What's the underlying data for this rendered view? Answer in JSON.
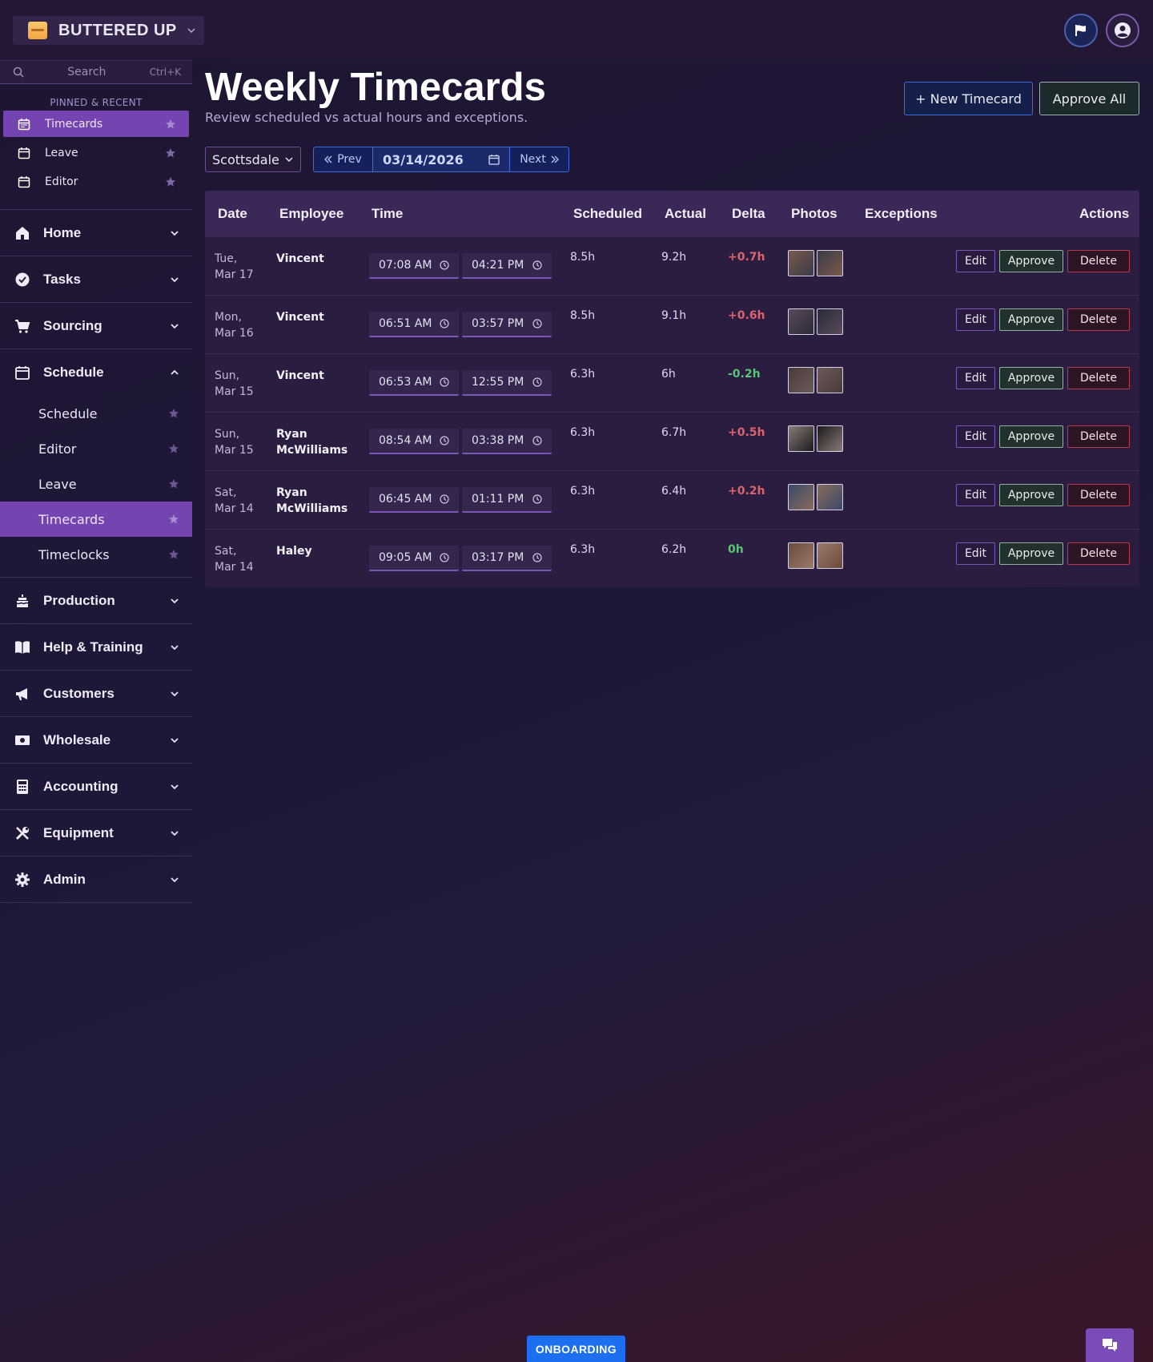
{
  "brand": {
    "name": "BUTTERED UP",
    "logo_icon": "brand-logo"
  },
  "top_actions": {
    "flag_icon": "flag-icon",
    "user_icon": "user-circle-icon"
  },
  "sidebar": {
    "search": {
      "placeholder": "Search",
      "shortcut": "Ctrl+K"
    },
    "pinned_title": "PINNED & RECENT",
    "pinned": [
      {
        "label": "Timecards",
        "active": true
      },
      {
        "label": "Leave",
        "active": false
      },
      {
        "label": "Editor",
        "active": false
      }
    ],
    "groups": [
      {
        "label": "Home",
        "icon": "house-icon",
        "expanded": false
      },
      {
        "label": "Tasks",
        "icon": "check-circle-icon",
        "expanded": false
      },
      {
        "label": "Sourcing",
        "icon": "cart-icon",
        "expanded": false
      },
      {
        "label": "Schedule",
        "icon": "calendar-icon",
        "expanded": true,
        "items": [
          {
            "label": "Schedule",
            "active": false
          },
          {
            "label": "Editor",
            "active": false
          },
          {
            "label": "Leave",
            "active": false
          },
          {
            "label": "Timecards",
            "active": true
          },
          {
            "label": "Timeclocks",
            "active": false
          }
        ]
      },
      {
        "label": "Production",
        "icon": "cake-icon",
        "expanded": false
      },
      {
        "label": "Help & Training",
        "icon": "book-icon",
        "expanded": false
      },
      {
        "label": "Customers",
        "icon": "megaphone-icon",
        "expanded": false
      },
      {
        "label": "Wholesale",
        "icon": "money-icon",
        "expanded": false
      },
      {
        "label": "Accounting",
        "icon": "calculator-icon",
        "expanded": false
      },
      {
        "label": "Equipment",
        "icon": "tools-icon",
        "expanded": false
      },
      {
        "label": "Admin",
        "icon": "gear-icon",
        "expanded": false
      }
    ]
  },
  "page": {
    "title": "Weekly Timecards",
    "subtitle": "Review scheduled vs actual hours and exceptions.",
    "new_button": "+ New Timecard",
    "approve_all_button": "Approve All"
  },
  "filters": {
    "location": "Scottsdale",
    "prev_label": "Prev",
    "next_label": "Next",
    "date": "03/14/2026"
  },
  "table": {
    "headers": {
      "date": "Date",
      "employee": "Employee",
      "time": "Time",
      "scheduled": "Scheduled",
      "actual": "Actual",
      "delta": "Delta",
      "photos": "Photos",
      "exceptions": "Exceptions",
      "actions": "Actions"
    },
    "action_labels": {
      "edit": "Edit",
      "approve": "Approve",
      "delete": "Delete"
    },
    "rows": [
      {
        "day": "Tue,",
        "date": "Mar 17",
        "employee_first": "Vincent",
        "employee_last": "",
        "time_in": "07:08 AM",
        "time_out": "04:21 PM",
        "scheduled": "8.5h",
        "actual": "9.2h",
        "delta": "+0.7h",
        "delta_sign": "pos",
        "exceptions": ""
      },
      {
        "day": "Mon,",
        "date": "Mar 16",
        "employee_first": "Vincent",
        "employee_last": "",
        "time_in": "06:51 AM",
        "time_out": "03:57 PM",
        "scheduled": "8.5h",
        "actual": "9.1h",
        "delta": "+0.6h",
        "delta_sign": "pos",
        "exceptions": ""
      },
      {
        "day": "Sun,",
        "date": "Mar 15",
        "employee_first": "Vincent",
        "employee_last": "",
        "time_in": "06:53 AM",
        "time_out": "12:55 PM",
        "scheduled": "6.3h",
        "actual": "6h",
        "delta": "-0.2h",
        "delta_sign": "neg",
        "exceptions": ""
      },
      {
        "day": "Sun,",
        "date": "Mar 15",
        "employee_first": "Ryan",
        "employee_last": "McWilliams",
        "time_in": "08:54 AM",
        "time_out": "03:38 PM",
        "scheduled": "6.3h",
        "actual": "6.7h",
        "delta": "+0.5h",
        "delta_sign": "pos",
        "exceptions": ""
      },
      {
        "day": "Sat,",
        "date": "Mar 14",
        "employee_first": "Ryan",
        "employee_last": "McWilliams",
        "time_in": "06:45 AM",
        "time_out": "01:11 PM",
        "scheduled": "6.3h",
        "actual": "6.4h",
        "delta": "+0.2h",
        "delta_sign": "pos",
        "exceptions": ""
      },
      {
        "day": "Sat,",
        "date": "Mar 14",
        "employee_first": "Haley",
        "employee_last": "",
        "time_in": "09:05 AM",
        "time_out": "03:17 PM",
        "scheduled": "6.3h",
        "actual": "6.2h",
        "delta": "0h",
        "delta_sign": "neg",
        "exceptions": ""
      }
    ]
  },
  "footer": {
    "onboarding_label": "ONBOARDING",
    "chat_icon": "chat-icon"
  },
  "colors": {
    "accent": "#7444b0",
    "primary_blue": "#3e6ae0",
    "delta_positive": "#d9646e",
    "delta_negative": "#58c774",
    "danger": "#b23a4a"
  }
}
